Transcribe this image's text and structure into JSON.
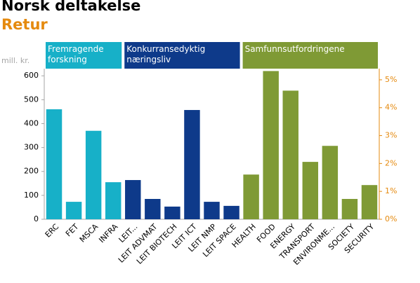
{
  "chart_data": {
    "type": "bar",
    "title": "Norsk deltakelse",
    "subtitle": "Retur",
    "y_label": "mill. kr.",
    "categories": [
      "ERC",
      "FET",
      "MSCA",
      "INFRA",
      "LEIT...",
      "LEIT ADVMAT",
      "LEIT BIOTECH",
      "LEIT ICT",
      "LEIT NMP",
      "LEIT SPACE",
      "HEALTH",
      "FOOD",
      "ENERGY",
      "TRANSPORT",
      "ENVIRONME...",
      "SOCIETY",
      "SECURITY"
    ],
    "values": [
      460,
      73,
      370,
      155,
      164,
      85,
      53,
      457,
      73,
      56,
      187,
      620,
      538,
      240,
      307,
      85,
      143
    ],
    "colors": [
      "#17b0c8",
      "#17b0c8",
      "#17b0c8",
      "#17b0c8",
      "#0e3a8a",
      "#0e3a8a",
      "#0e3a8a",
      "#0e3a8a",
      "#0e3a8a",
      "#0e3a8a",
      "#7f9a35",
      "#7f9a35",
      "#7f9a35",
      "#7f9a35",
      "#7f9a35",
      "#7f9a35",
      "#7f9a35"
    ],
    "groups": [
      {
        "label": "Fremragende forskning",
        "color": "#17b0c8"
      },
      {
        "label": "Konkurransedyktig næringsliv",
        "color": "#0e3a8a"
      },
      {
        "label": "Samfunnsutfordringene",
        "color": "#7f9a35"
      }
    ],
    "ylim": [
      0,
      630
    ],
    "yticks": [
      0,
      100,
      200,
      300,
      400,
      500,
      600
    ],
    "y2lim": [
      0,
      5.4
    ],
    "y2ticks": [
      {
        "value": 0,
        "label": "0%"
      },
      {
        "value": 1,
        "label": "1%"
      },
      {
        "value": 2,
        "label": "2%"
      },
      {
        "value": 3,
        "label": "3%"
      },
      {
        "value": 4,
        "label": "4%"
      },
      {
        "value": 5,
        "label": "5%"
      }
    ]
  }
}
